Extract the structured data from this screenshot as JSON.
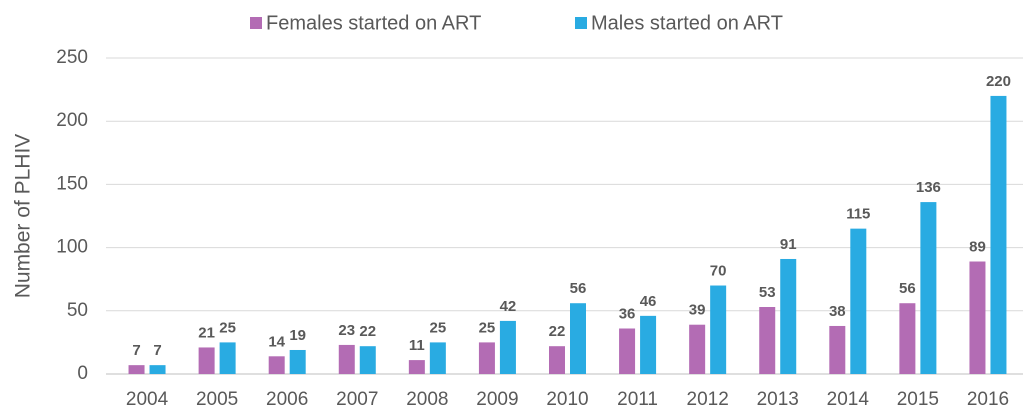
{
  "chart_data": {
    "type": "bar",
    "y_label": "Number of PLHIV",
    "categories": [
      "2004",
      "2005",
      "2006",
      "2007",
      "2008",
      "2009",
      "2010",
      "2011",
      "2012",
      "2013",
      "2014",
      "2015",
      "2016"
    ],
    "series": [
      {
        "name": "Females started on ART",
        "color": "#b36cb4",
        "values": [
          7,
          21,
          14,
          23,
          11,
          25,
          22,
          36,
          39,
          53,
          38,
          56,
          89
        ]
      },
      {
        "name": "Males started on ART",
        "color": "#29abe2",
        "values": [
          7,
          25,
          19,
          22,
          25,
          42,
          56,
          46,
          70,
          91,
          115,
          136,
          220
        ]
      }
    ],
    "ylim": [
      0,
      250
    ],
    "yticks": [
      0,
      50,
      100,
      150,
      200,
      250
    ],
    "grid": true,
    "legend": "top"
  }
}
